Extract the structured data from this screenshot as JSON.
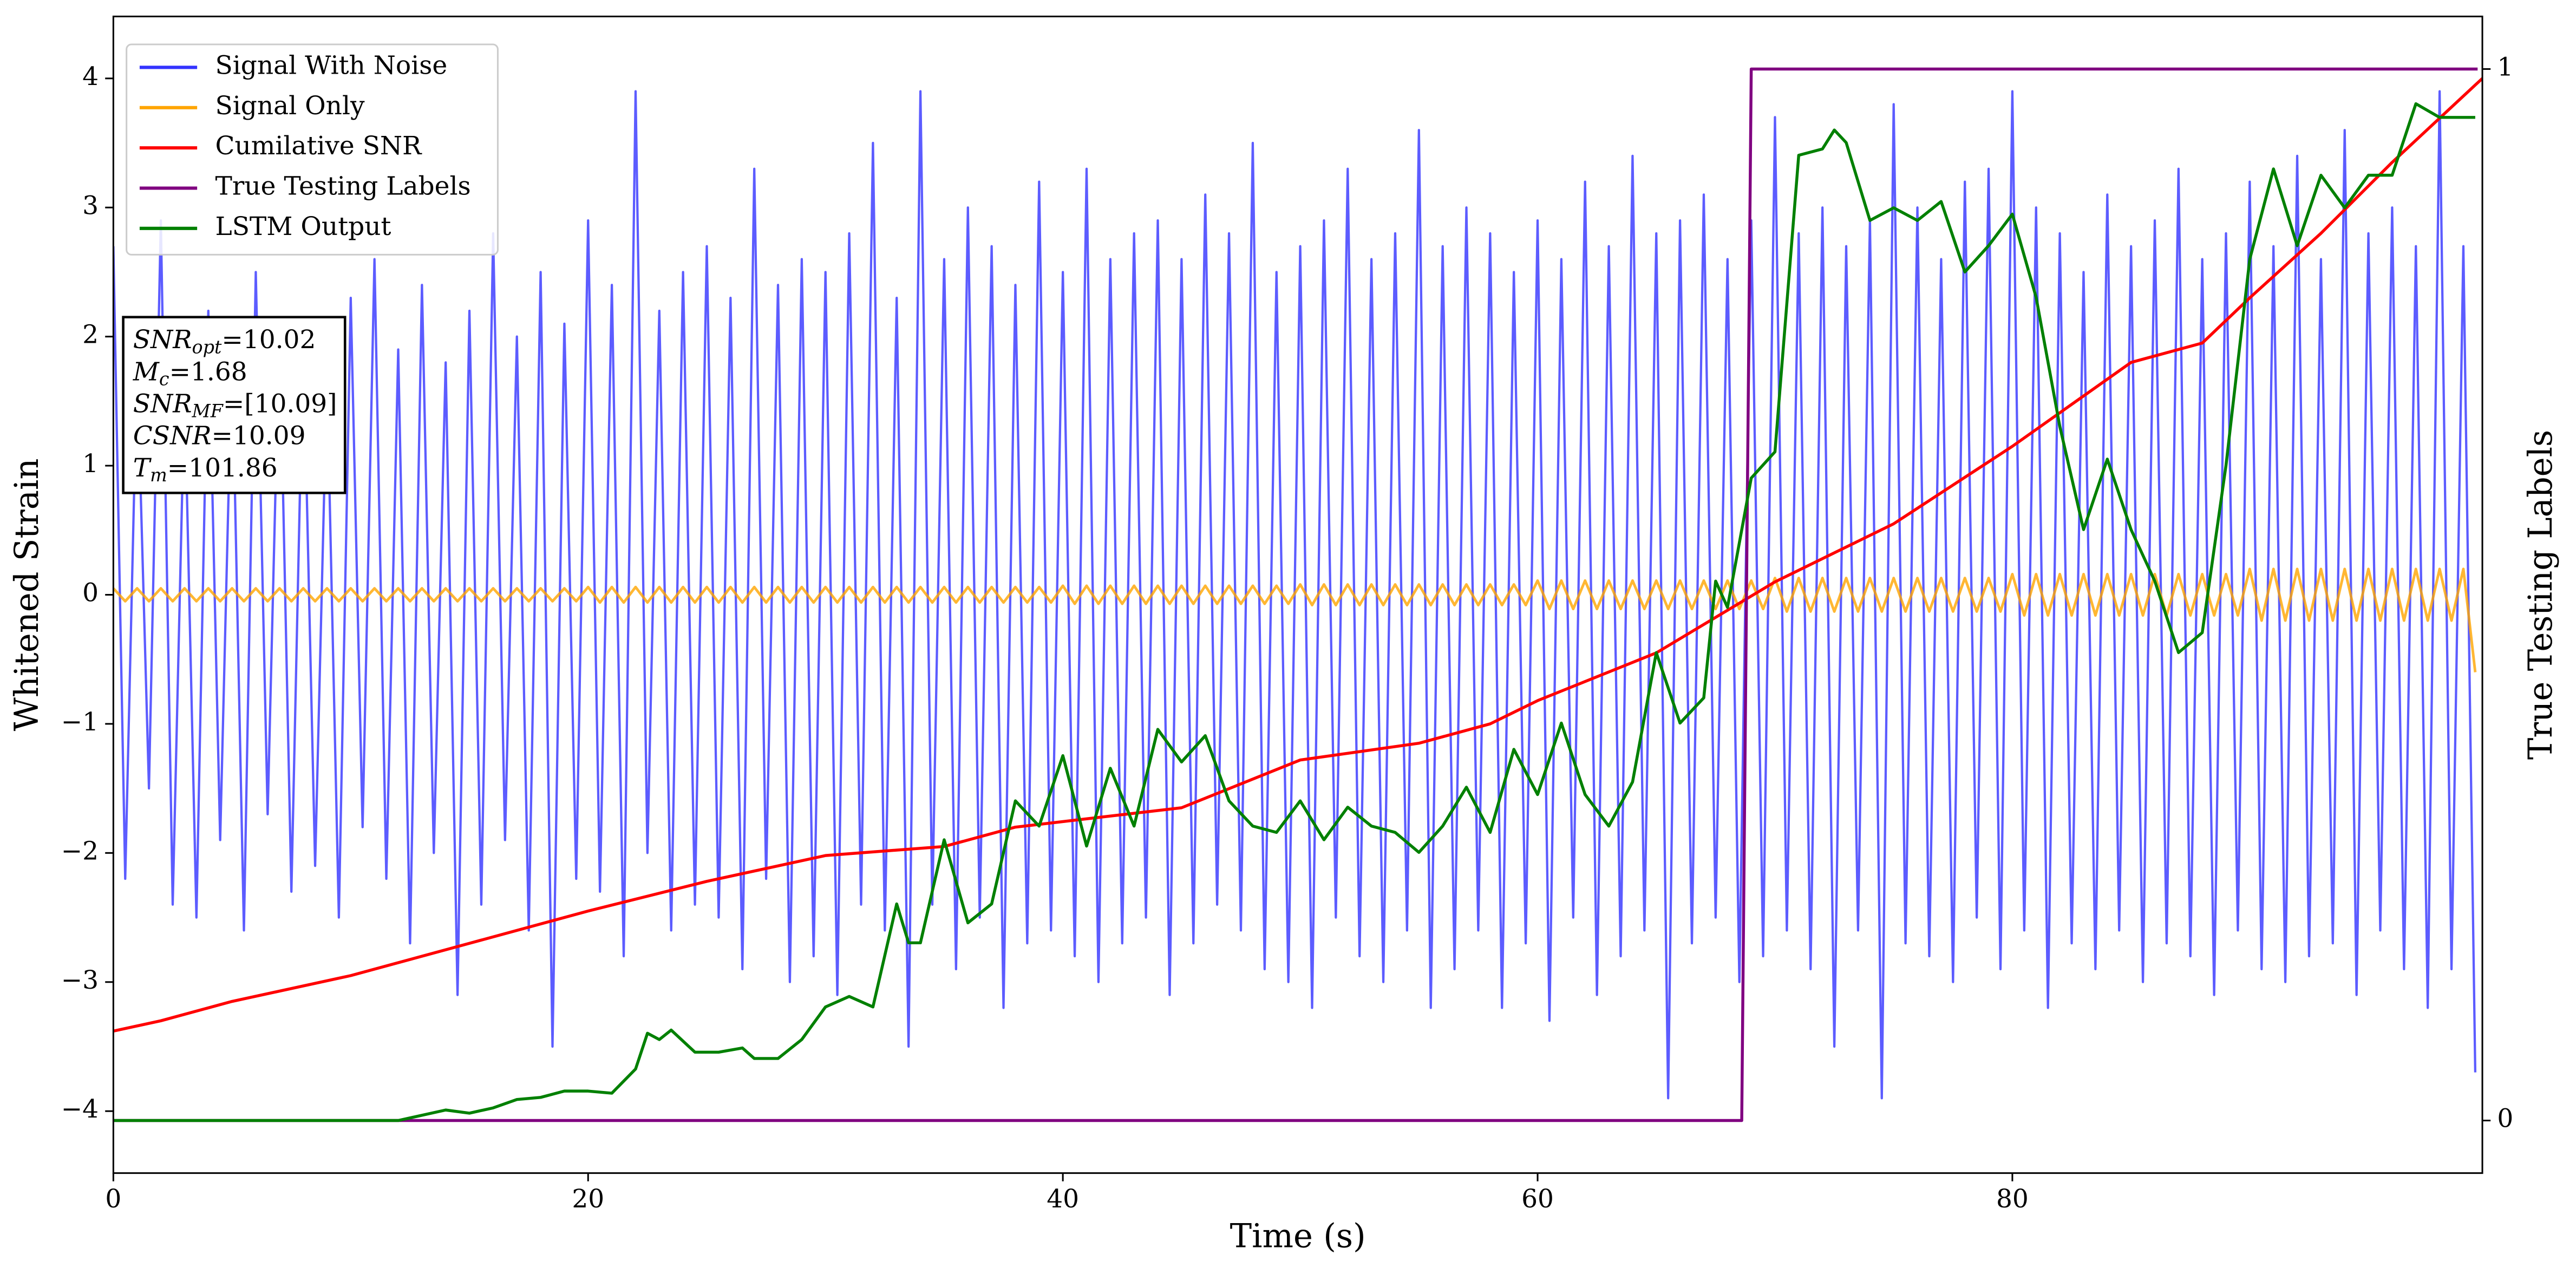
{
  "chart_data": {
    "type": "line",
    "xlabel": "Time (s)",
    "ylabel": "Whitened Strain",
    "y2label": "True Testing Labels",
    "xlim": [
      0,
      99.8
    ],
    "xticks": [
      0,
      20,
      40,
      60,
      80
    ],
    "ylim": [
      -4.48,
      4.48
    ],
    "yticks": [
      {
        "value": -4,
        "label": "−4"
      },
      {
        "value": -3,
        "label": "−3"
      },
      {
        "value": -2,
        "label": "−2"
      },
      {
        "value": -1,
        "label": "−1"
      },
      0,
      1,
      2,
      3,
      4
    ],
    "y2lim": [
      -0.05,
      1.05
    ],
    "y2ticks": [
      0,
      1
    ],
    "grid": false,
    "legend": "upper left",
    "x": [
      0,
      0.5,
      1,
      1.5,
      2,
      2.5,
      3,
      3.5,
      4,
      4.5,
      5,
      5.5,
      6,
      6.5,
      7,
      7.5,
      8,
      8.5,
      9,
      9.5,
      10,
      10.5,
      11,
      11.5,
      12,
      12.5,
      13,
      13.5,
      14,
      14.5,
      15,
      15.5,
      16,
      16.5,
      17,
      17.5,
      18,
      18.5,
      19,
      19.5,
      20,
      20.5,
      21,
      21.5,
      22,
      22.5,
      23,
      23.5,
      24,
      24.5,
      25,
      25.5,
      26,
      26.5,
      27,
      27.5,
      28,
      28.5,
      29,
      29.5,
      30,
      30.5,
      31,
      31.5,
      32,
      32.5,
      33,
      33.5,
      34,
      34.5,
      35,
      35.5,
      36,
      36.5,
      37,
      37.5,
      38,
      38.5,
      39,
      39.5,
      40,
      40.5,
      41,
      41.5,
      42,
      42.5,
      43,
      43.5,
      44,
      44.5,
      45,
      45.5,
      46,
      46.5,
      47,
      47.5,
      48,
      48.5,
      49,
      49.5,
      50,
      50.5,
      51,
      51.5,
      52,
      52.5,
      53,
      53.5,
      54,
      54.5,
      55,
      55.5,
      56,
      56.5,
      57,
      57.5,
      58,
      58.5,
      59,
      59.5,
      60,
      60.5,
      61,
      61.5,
      62,
      62.5,
      63,
      63.5,
      64,
      64.5,
      65,
      65.5,
      66,
      66.5,
      67,
      67.5,
      68,
      68.5,
      69,
      69.5,
      70,
      70.5,
      71,
      71.5,
      72,
      72.5,
      73,
      73.5,
      74,
      74.5,
      75,
      75.5,
      76,
      76.5,
      77,
      77.5,
      78,
      78.5,
      79,
      79.5,
      80,
      80.5,
      81,
      81.5,
      82,
      82.5,
      83,
      83.5,
      84,
      84.5,
      85,
      85.5,
      86,
      86.5,
      87,
      87.5,
      88,
      88.5,
      89,
      89.5,
      90,
      90.5,
      91,
      91.5,
      92,
      92.5,
      93,
      93.5,
      94,
      94.5,
      95,
      95.5,
      96,
      96.5,
      97,
      97.5,
      98,
      98.5,
      99,
      99.5
    ],
    "series": [
      {
        "name": "Signal With Noise",
        "color": "#3333ff",
        "values": [
          2.7,
          -2.2,
          1.8,
          -1.5,
          2.9,
          -2.4,
          1.6,
          -2.5,
          2.2,
          -1.9,
          1.9,
          -2.6,
          2.5,
          -1.7,
          2.1,
          -2.3,
          2.0,
          -2.1,
          1.7,
          -2.5,
          2.3,
          -1.8,
          2.6,
          -2.2,
          1.9,
          -2.7,
          2.4,
          -2.0,
          1.8,
          -3.1,
          2.2,
          -2.4,
          2.8,
          -1.9,
          2.0,
          -2.6,
          2.5,
          -3.5,
          2.1,
          -2.2,
          2.9,
          -2.3,
          2.4,
          -2.8,
          3.9,
          -2.0,
          2.2,
          -2.6,
          2.5,
          -2.4,
          2.7,
          -2.5,
          2.3,
          -2.9,
          3.3,
          -2.2,
          2.4,
          -3.0,
          2.6,
          -2.8,
          2.5,
          -3.1,
          2.8,
          -2.4,
          3.5,
          -2.6,
          2.3,
          -3.5,
          3.9,
          -2.4,
          2.6,
          -2.9,
          3.0,
          -2.5,
          2.7,
          -3.2,
          2.4,
          -2.7,
          3.2,
          -2.6,
          2.5,
          -2.8,
          3.3,
          -3.0,
          2.6,
          -2.7,
          2.8,
          -2.5,
          2.9,
          -3.1,
          2.6,
          -2.7,
          3.1,
          -2.4,
          2.8,
          -2.6,
          3.5,
          -2.9,
          2.5,
          -3.0,
          2.7,
          -3.2,
          2.9,
          -2.5,
          3.3,
          -2.8,
          2.6,
          -3.0,
          2.8,
          -2.6,
          3.6,
          -3.2,
          2.7,
          -2.9,
          3.0,
          -2.6,
          2.8,
          -3.2,
          2.5,
          -2.7,
          2.9,
          -3.3,
          2.6,
          -2.5,
          3.2,
          -3.1,
          2.7,
          -2.8,
          3.4,
          -2.6,
          2.8,
          -3.9,
          2.9,
          -2.7,
          3.1,
          -2.5,
          2.6,
          -3.0,
          2.9,
          -2.8,
          3.7,
          -2.6,
          2.8,
          -2.9,
          3.0,
          -3.5,
          2.7,
          -2.6,
          2.9,
          -3.9,
          3.8,
          -2.7,
          3.0,
          -2.8,
          2.6,
          -3.0,
          3.2,
          -2.5,
          3.3,
          -2.9,
          3.9,
          -2.6,
          3.0,
          -3.2,
          2.8,
          -2.7,
          2.5,
          -2.9,
          3.1,
          -2.6,
          2.7,
          -3.0,
          2.9,
          -2.7,
          3.3,
          -2.8,
          2.6,
          -3.1,
          2.8,
          -2.6,
          3.2,
          -2.9,
          2.7,
          -3.0,
          3.4,
          -2.8,
          2.6,
          -2.7,
          3.6,
          -3.1,
          2.8,
          -2.6,
          3.0,
          -2.9,
          2.7,
          -3.2,
          3.9,
          -2.9,
          2.7,
          -3.7
        ]
      },
      {
        "name": "Signal Only",
        "color": "#ffa500",
        "values": [
          0.05,
          -0.05,
          0.05,
          -0.05,
          0.05,
          -0.05,
          0.05,
          -0.05,
          0.05,
          -0.05,
          0.05,
          -0.05,
          0.05,
          -0.05,
          0.05,
          -0.05,
          0.05,
          -0.05,
          0.05,
          -0.05,
          0.05,
          -0.05,
          0.05,
          -0.05,
          0.05,
          -0.05,
          0.05,
          -0.05,
          0.05,
          -0.05,
          0.05,
          -0.05,
          0.05,
          -0.05,
          0.05,
          -0.05,
          0.05,
          -0.05,
          0.05,
          -0.05,
          0.06,
          -0.06,
          0.06,
          -0.06,
          0.06,
          -0.06,
          0.06,
          -0.06,
          0.06,
          -0.06,
          0.06,
          -0.06,
          0.06,
          -0.06,
          0.06,
          -0.06,
          0.06,
          -0.06,
          0.06,
          -0.06,
          0.06,
          -0.06,
          0.06,
          -0.06,
          0.06,
          -0.06,
          0.06,
          -0.06,
          0.06,
          -0.06,
          0.06,
          -0.06,
          0.06,
          -0.06,
          0.06,
          -0.06,
          0.06,
          -0.06,
          0.06,
          -0.06,
          0.07,
          -0.07,
          0.07,
          -0.07,
          0.07,
          -0.07,
          0.07,
          -0.07,
          0.07,
          -0.07,
          0.07,
          -0.07,
          0.07,
          -0.07,
          0.07,
          -0.07,
          0.07,
          -0.07,
          0.07,
          -0.07,
          0.08,
          -0.08,
          0.08,
          -0.08,
          0.08,
          -0.08,
          0.08,
          -0.08,
          0.08,
          -0.08,
          0.08,
          -0.08,
          0.08,
          -0.08,
          0.08,
          -0.08,
          0.08,
          -0.08,
          0.08,
          -0.08,
          0.11,
          -0.11,
          0.11,
          -0.11,
          0.11,
          -0.11,
          0.11,
          -0.11,
          0.11,
          -0.11,
          0.11,
          -0.11,
          0.11,
          -0.11,
          0.11,
          -0.11,
          0.11,
          -0.11,
          0.11,
          -0.11,
          0.13,
          -0.13,
          0.13,
          -0.13,
          0.13,
          -0.13,
          0.13,
          -0.13,
          0.13,
          -0.13,
          0.13,
          -0.13,
          0.13,
          -0.13,
          0.13,
          -0.13,
          0.13,
          -0.13,
          0.13,
          -0.13,
          0.16,
          -0.16,
          0.16,
          -0.16,
          0.16,
          -0.16,
          0.16,
          -0.16,
          0.16,
          -0.16,
          0.16,
          -0.16,
          0.16,
          -0.16,
          0.16,
          -0.16,
          0.16,
          -0.16,
          0.16,
          -0.16,
          0.2,
          -0.2,
          0.2,
          -0.2,
          0.2,
          -0.2,
          0.2,
          -0.2,
          0.2,
          -0.2,
          0.2,
          -0.2,
          0.2,
          -0.2,
          0.2,
          -0.2,
          0.2,
          -0.2,
          0.2,
          -0.6
        ]
      },
      {
        "name": "Cumilative SNR",
        "color": "#ff0000",
        "x": [
          0,
          2,
          5,
          10,
          15,
          20,
          25,
          30,
          35,
          38,
          45,
          50,
          55,
          58,
          60,
          65,
          70,
          75,
          80,
          85,
          88,
          90,
          93,
          96,
          99.8
        ],
        "values": [
          -3.38,
          -3.3,
          -3.15,
          -2.95,
          -2.7,
          -2.45,
          -2.22,
          -2.02,
          -1.95,
          -1.8,
          -1.65,
          -1.28,
          -1.15,
          -1.0,
          -0.82,
          -0.45,
          0.1,
          0.55,
          1.15,
          1.8,
          1.95,
          2.3,
          2.8,
          3.35,
          4.0
        ]
      },
      {
        "name": "True Testing Labels",
        "color": "#800080",
        "axis": "y2",
        "x": [
          0,
          68.6,
          69.0,
          99.6
        ],
        "values": [
          0,
          0,
          1,
          1
        ]
      },
      {
        "name": "LSTM Output",
        "color": "#008000",
        "axis": "y2",
        "x": [
          0,
          12,
          14,
          15,
          16,
          17,
          18,
          19,
          20,
          21,
          22,
          22.5,
          23,
          23.5,
          24.5,
          25.5,
          26.5,
          27,
          28,
          29,
          30,
          31,
          32,
          33,
          33.5,
          34,
          35,
          36,
          37,
          38,
          39,
          40,
          41,
          42,
          43,
          44,
          45,
          46,
          47,
          48,
          49,
          50,
          51,
          52,
          53,
          54,
          55,
          56,
          57,
          58,
          59,
          60,
          61,
          62,
          63,
          64,
          65,
          66,
          67,
          67.5,
          68,
          69,
          70,
          71,
          72,
          72.5,
          73,
          74,
          75,
          76,
          77,
          78,
          79,
          80,
          81,
          82,
          83,
          84,
          85,
          86,
          87,
          88,
          89,
          90,
          91,
          92,
          93,
          94,
          95,
          96,
          97,
          98,
          99.5
        ],
        "values": [
          0,
          0,
          0.01,
          0.007,
          0.012,
          0.02,
          0.022,
          0.028,
          0.028,
          0.026,
          0.049,
          0.083,
          0.077,
          0.086,
          0.065,
          0.065,
          0.069,
          0.059,
          0.059,
          0.077,
          0.108,
          0.118,
          0.108,
          0.206,
          0.169,
          0.169,
          0.267,
          0.188,
          0.206,
          0.304,
          0.28,
          0.347,
          0.261,
          0.335,
          0.28,
          0.372,
          0.341,
          0.366,
          0.304,
          0.28,
          0.274,
          0.304,
          0.267,
          0.298,
          0.28,
          0.274,
          0.255,
          0.28,
          0.317,
          0.274,
          0.353,
          0.31,
          0.378,
          0.31,
          0.28,
          0.322,
          0.445,
          0.378,
          0.402,
          0.513,
          0.488,
          0.611,
          0.636,
          0.918,
          0.924,
          0.942,
          0.93,
          0.856,
          0.868,
          0.856,
          0.874,
          0.807,
          0.832,
          0.862,
          0.783,
          0.66,
          0.562,
          0.629,
          0.562,
          0.513,
          0.445,
          0.464,
          0.623,
          0.819,
          0.905,
          0.832,
          0.899,
          0.868,
          0.899,
          0.899,
          0.967,
          0.954,
          0.954
        ]
      }
    ],
    "annotation": [
      {
        "symbol": "SNR",
        "sub": "opt",
        "text": "=10.02"
      },
      {
        "symbol": "M",
        "sub": "c",
        "text": "=1.68"
      },
      {
        "symbol": "SNR",
        "sub": "MF",
        "text": "=[10.09]"
      },
      {
        "symbol": "CSNR",
        "text": "=10.09"
      },
      {
        "symbol": "T",
        "sub": "m",
        "text": "=101.86"
      }
    ]
  }
}
